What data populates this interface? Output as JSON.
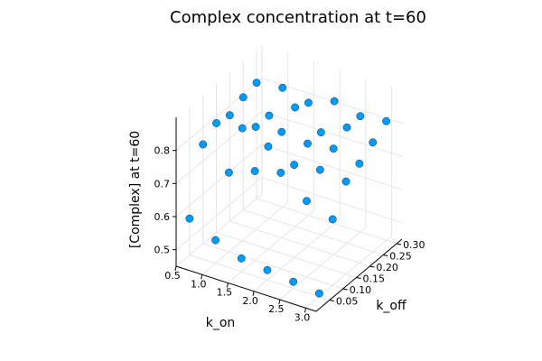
{
  "chart_data": {
    "type": "scatter",
    "title": "Complex concentration at t=60",
    "xlabel": "k_on",
    "ylabel": "k_off",
    "zlabel": "[Complex] at t=60",
    "xlim": [
      0.5,
      3.2
    ],
    "ylim": [
      0.0,
      0.32
    ],
    "zlim": [
      0.45,
      0.9
    ],
    "xticks": [
      "0.5",
      "1.0",
      "1.5",
      "2.0",
      "2.5",
      "3.0"
    ],
    "yticks": [
      "0.05",
      "0.10",
      "0.15",
      "0.20",
      "0.25",
      "0.30"
    ],
    "zticks": [
      "0.5",
      "0.6",
      "0.7",
      "0.8"
    ],
    "grid": true,
    "legend": "none",
    "marker_color": "#009af9",
    "points": [
      {
        "x": 0.5,
        "y": 0.05,
        "z": 0.56
      },
      {
        "x": 1.0,
        "y": 0.05,
        "z": 0.52
      },
      {
        "x": 1.5,
        "y": 0.05,
        "z": 0.49
      },
      {
        "x": 2.0,
        "y": 0.05,
        "z": 0.48
      },
      {
        "x": 2.5,
        "y": 0.05,
        "z": 0.47
      },
      {
        "x": 3.0,
        "y": 0.05,
        "z": 0.46
      },
      {
        "x": 0.5,
        "y": 0.1,
        "z": 0.75
      },
      {
        "x": 1.0,
        "y": 0.1,
        "z": 0.69
      },
      {
        "x": 1.5,
        "y": 0.1,
        "z": 0.72
      },
      {
        "x": 2.0,
        "y": 0.1,
        "z": 0.74
      },
      {
        "x": 2.5,
        "y": 0.1,
        "z": 0.68
      },
      {
        "x": 3.0,
        "y": 0.1,
        "z": 0.65
      },
      {
        "x": 0.5,
        "y": 0.15,
        "z": 0.78
      },
      {
        "x": 1.0,
        "y": 0.15,
        "z": 0.79
      },
      {
        "x": 1.5,
        "y": 0.15,
        "z": 0.76
      },
      {
        "x": 2.0,
        "y": 0.15,
        "z": 0.73
      },
      {
        "x": 2.5,
        "y": 0.15,
        "z": 0.74
      },
      {
        "x": 3.0,
        "y": 0.15,
        "z": 0.73
      },
      {
        "x": 0.5,
        "y": 0.2,
        "z": 0.77
      },
      {
        "x": 1.0,
        "y": 0.2,
        "z": 0.76
      },
      {
        "x": 1.5,
        "y": 0.2,
        "z": 0.77
      },
      {
        "x": 2.0,
        "y": 0.2,
        "z": 0.76
      },
      {
        "x": 2.5,
        "y": 0.2,
        "z": 0.77
      },
      {
        "x": 3.0,
        "y": 0.2,
        "z": 0.75
      },
      {
        "x": 0.5,
        "y": 0.25,
        "z": 0.79
      },
      {
        "x": 1.0,
        "y": 0.25,
        "z": 0.76
      },
      {
        "x": 1.5,
        "y": 0.25,
        "z": 0.81
      },
      {
        "x": 2.0,
        "y": 0.25,
        "z": 0.76
      },
      {
        "x": 2.5,
        "y": 0.25,
        "z": 0.8
      },
      {
        "x": 3.0,
        "y": 0.25,
        "z": 0.78
      },
      {
        "x": 0.5,
        "y": 0.3,
        "z": 0.8
      },
      {
        "x": 1.0,
        "y": 0.3,
        "z": 0.81
      },
      {
        "x": 1.5,
        "y": 0.3,
        "z": 0.79
      },
      {
        "x": 2.0,
        "y": 0.3,
        "z": 0.82
      },
      {
        "x": 2.5,
        "y": 0.3,
        "z": 0.8
      },
      {
        "x": 3.0,
        "y": 0.3,
        "z": 0.81
      }
    ]
  }
}
